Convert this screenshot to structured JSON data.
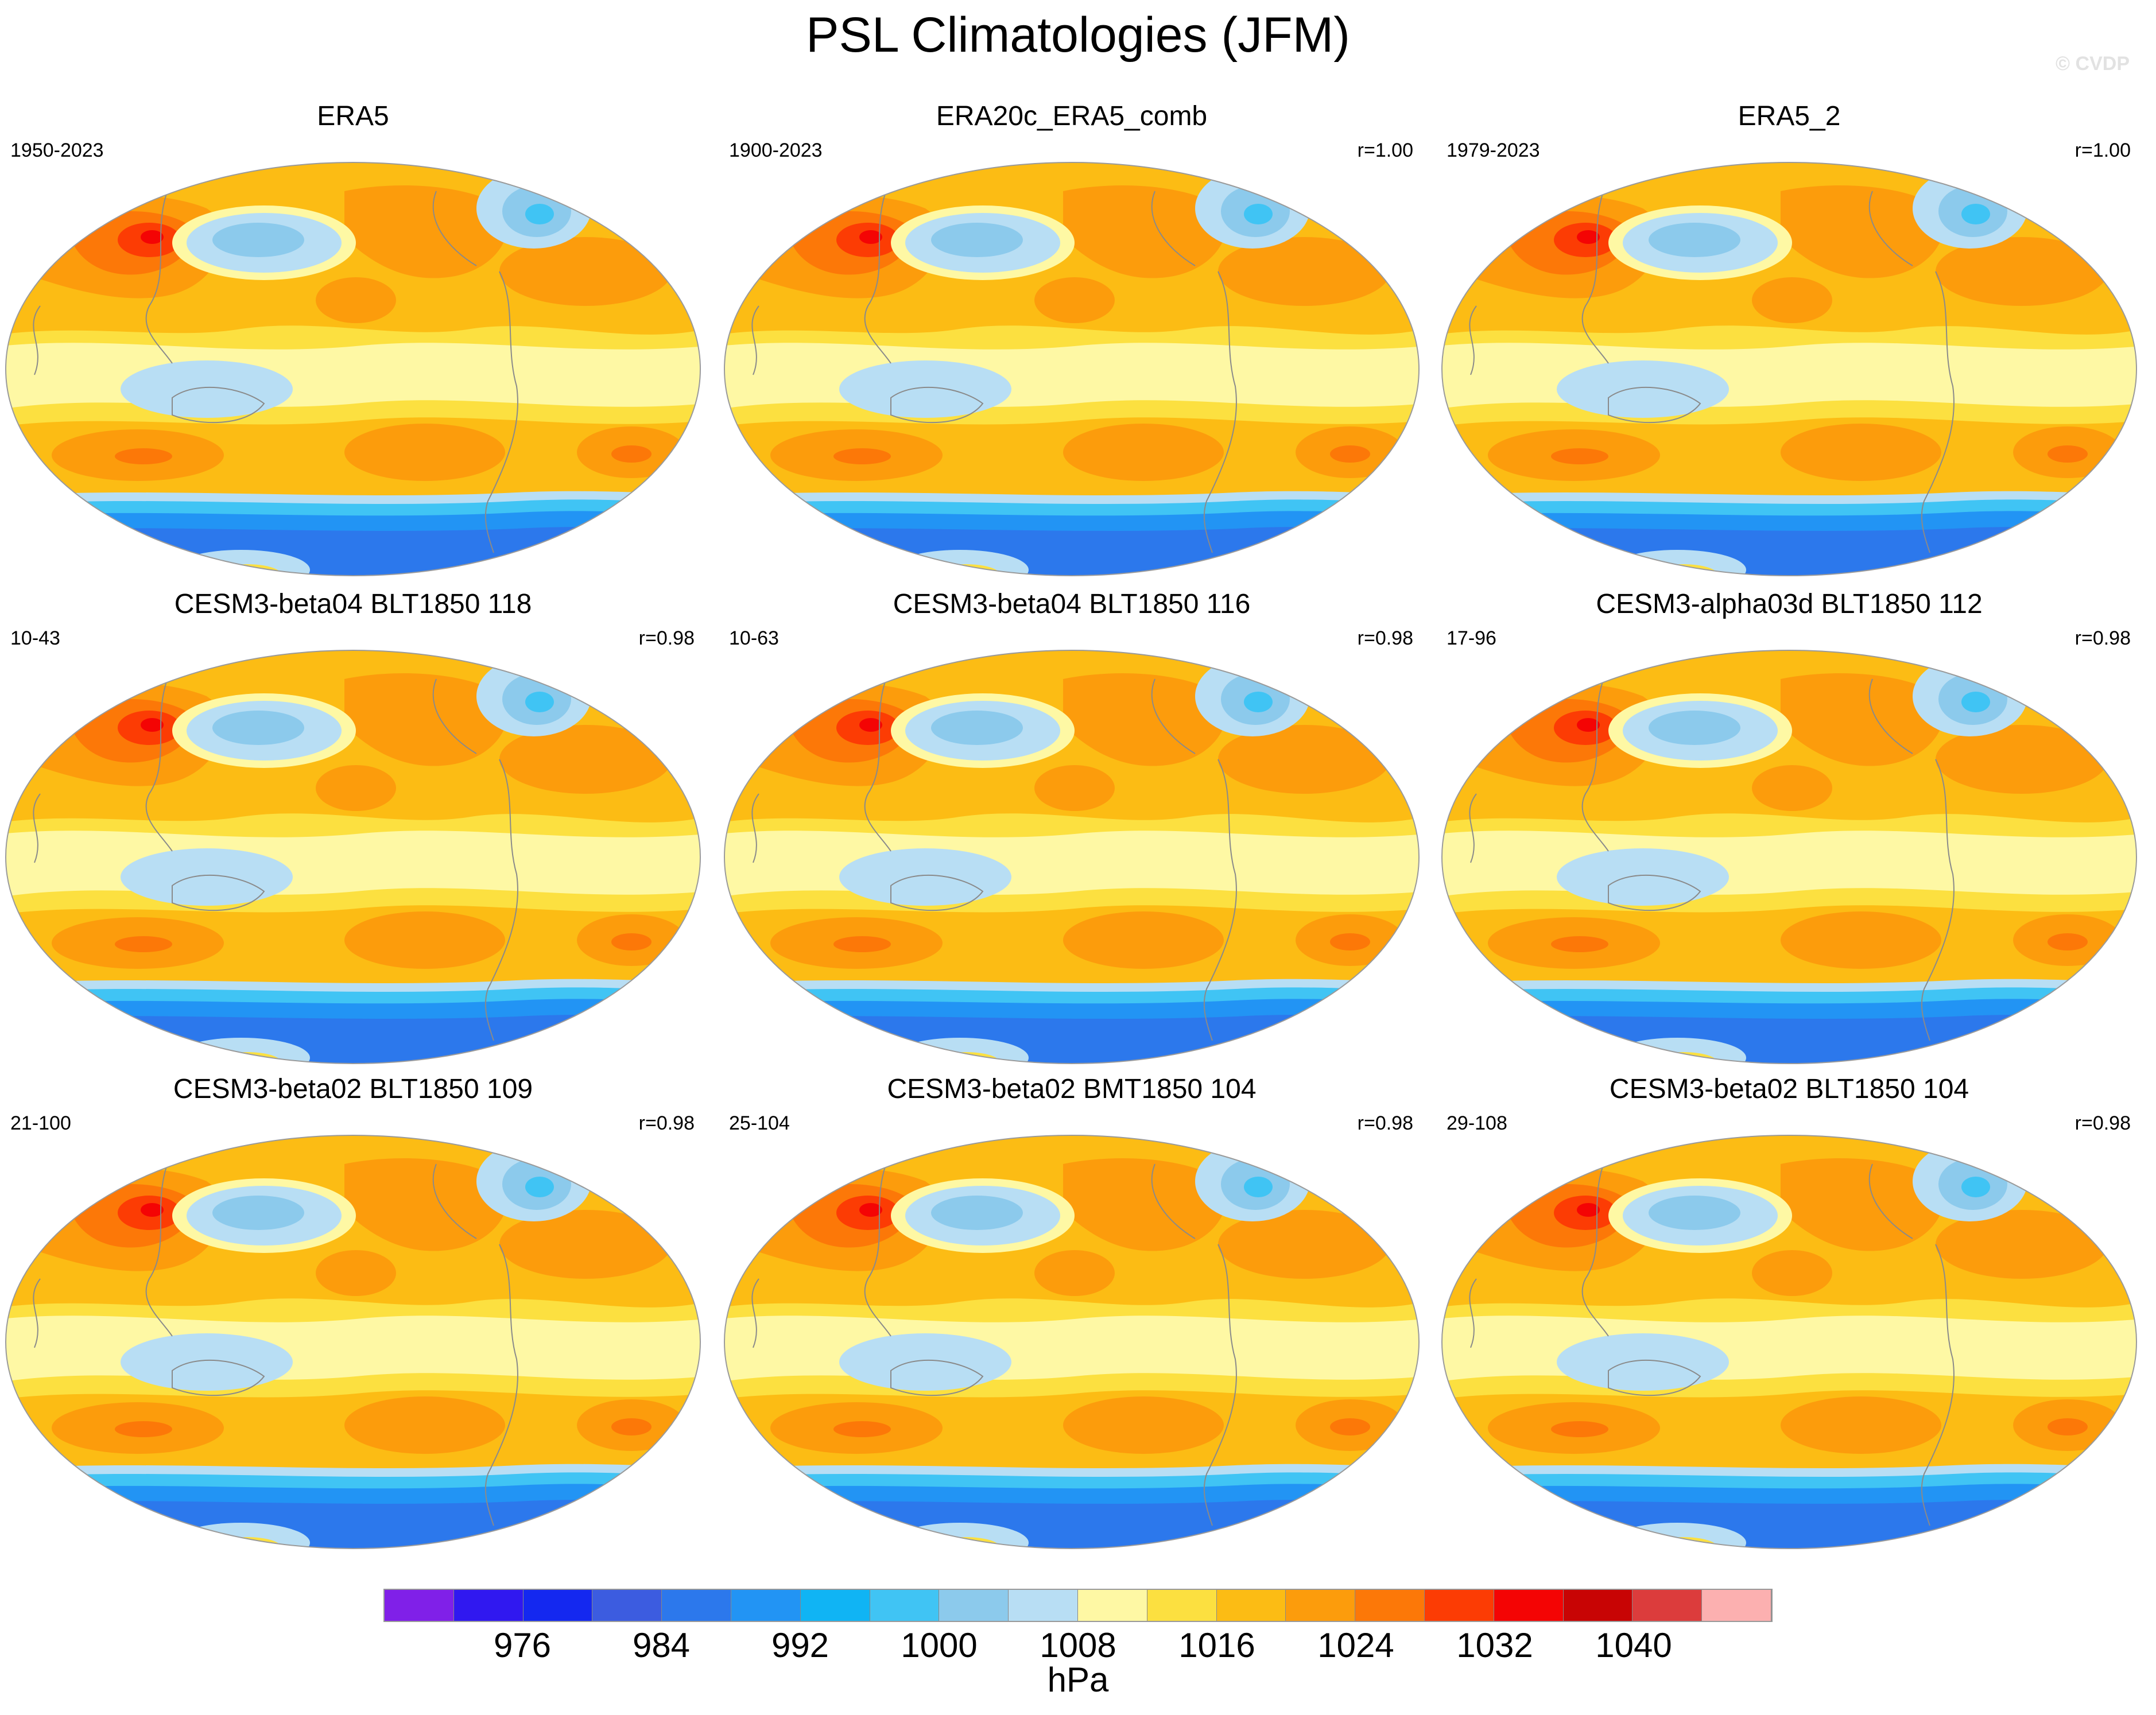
{
  "title": "PSL Climatologies (JFM)",
  "watermark": "© CVDP",
  "panels": [
    {
      "title": "ERA5",
      "period": "1950-2023",
      "corr": ""
    },
    {
      "title": "ERA20c_ERA5_comb",
      "period": "1900-2023",
      "corr": "r=1.00"
    },
    {
      "title": "ERA5_2",
      "period": "1979-2023",
      "corr": "r=1.00"
    },
    {
      "title": "CESM3-beta04 BLT1850 118",
      "period": "10-43",
      "corr": "r=0.98"
    },
    {
      "title": "CESM3-beta04 BLT1850 116",
      "period": "10-63",
      "corr": "r=0.98"
    },
    {
      "title": "CESM3-alpha03d BLT1850 112",
      "period": "17-96",
      "corr": "r=0.98"
    },
    {
      "title": "CESM3-beta02 BLT1850 109",
      "period": "21-100",
      "corr": "r=0.98"
    },
    {
      "title": "CESM3-beta02 BMT1850 104",
      "period": "25-104",
      "corr": "r=0.98"
    },
    {
      "title": "CESM3-beta02 BLT1850 104",
      "period": "29-108",
      "corr": "r=0.98"
    }
  ],
  "colorbar": {
    "colors": [
      "#8020e8",
      "#3018f0",
      "#1428f0",
      "#3c5ce0",
      "#2c78ec",
      "#2294f4",
      "#10b4f4",
      "#40c4f4",
      "#8ccaec",
      "#b8def4",
      "#fef8a4",
      "#fce040",
      "#fcbc14",
      "#fc9c0c",
      "#fc7808",
      "#fc3c04",
      "#f40404",
      "#c80404",
      "#dc3c3c",
      "#fcb0b0"
    ],
    "tick_labels": [
      "976",
      "984",
      "992",
      "1000",
      "1008",
      "1016",
      "1024",
      "1032",
      "1040"
    ],
    "units": "hPa"
  },
  "field_colors": {
    "base": "#fef8a4",
    "high1": "#fce040",
    "high2": "#fcbc14",
    "high3": "#fc9c0c",
    "high4": "#fc7808",
    "high5": "#fc3c04",
    "high6": "#f40404",
    "low1": "#b8def4",
    "low2": "#8ccaec",
    "low3": "#40c4f4",
    "low4": "#2c78ec",
    "low5": "#2294f4"
  }
}
